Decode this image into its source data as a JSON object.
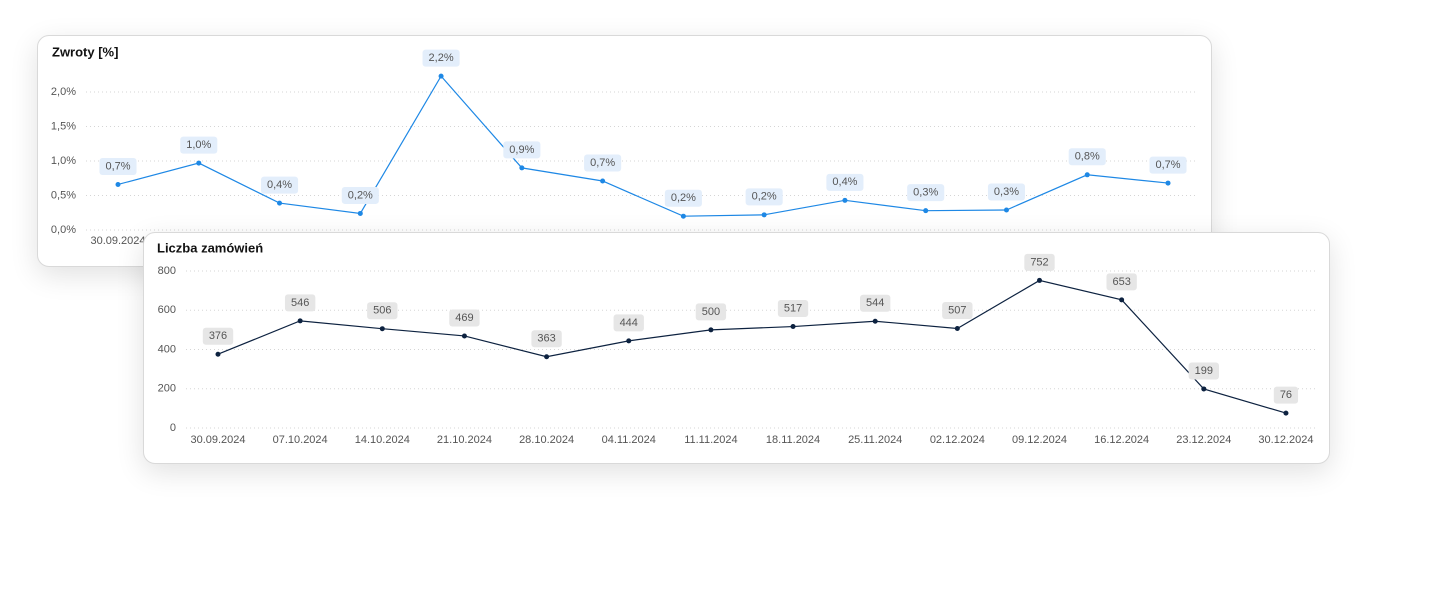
{
  "chart_data": [
    {
      "type": "line",
      "title": "Zwroty [%]",
      "categories": [
        "30.09.2024",
        null,
        null,
        null,
        null,
        null,
        null,
        null,
        null,
        null,
        null,
        null,
        null,
        null
      ],
      "values": [
        0.66,
        0.97,
        0.39,
        0.24,
        2.23,
        0.9,
        0.71,
        0.2,
        0.22,
        0.43,
        0.28,
        0.29,
        0.8,
        0.68
      ],
      "value_labels": [
        "0,7%",
        "1,0%",
        "0,4%",
        "0,2%",
        "2,2%",
        "0,9%",
        "0,7%",
        "0,2%",
        "0,2%",
        "0,4%",
        "0,3%",
        "0,3%",
        "0,8%",
        "0,7%"
      ],
      "color": "#1e88e5",
      "label_fill": "#e3eefb",
      "ylim": [
        0,
        2.3
      ],
      "yticks": [
        {
          "value": 0,
          "label": "0,0%"
        },
        {
          "value": 0.5,
          "label": "0,5%"
        },
        {
          "value": 1,
          "label": "1,0%"
        },
        {
          "value": 1.5,
          "label": "1,5%"
        },
        {
          "value": 2,
          "label": "2,0%"
        }
      ],
      "grid": true
    },
    {
      "type": "line",
      "title": "Liczba zamówień",
      "categories": [
        "30.09.2024",
        "07.10.2024",
        "14.10.2024",
        "21.10.2024",
        "28.10.2024",
        "04.11.2024",
        "11.11.2024",
        "18.11.2024",
        "25.11.2024",
        "02.12.2024",
        "09.12.2024",
        "16.12.2024",
        "23.12.2024",
        "30.12.2024"
      ],
      "values": [
        376,
        546,
        506,
        469,
        363,
        444,
        500,
        517,
        544,
        507,
        752,
        653,
        199,
        76
      ],
      "color": "#0d2240",
      "label_fill": "#e6e6e6",
      "ylim": [
        0,
        800
      ],
      "yticks": [
        0,
        200,
        400,
        600,
        800
      ],
      "grid": true
    }
  ]
}
